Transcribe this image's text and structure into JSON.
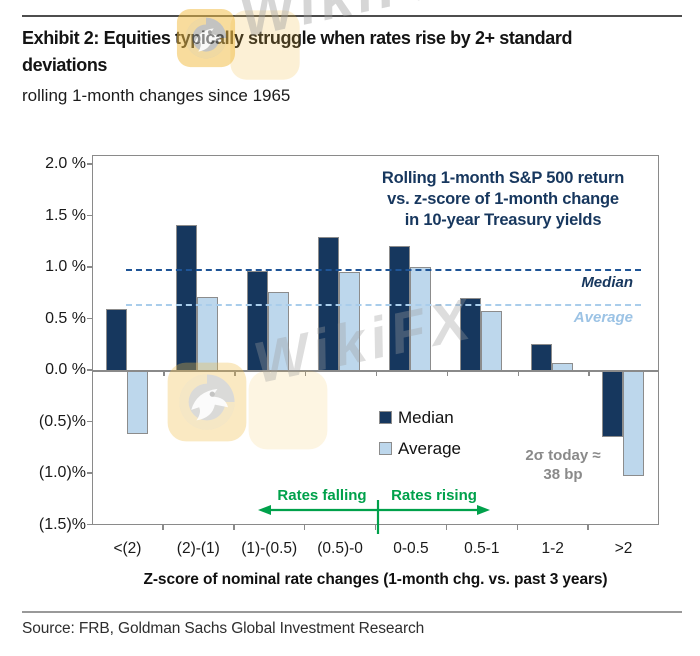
{
  "header": {
    "title_lines": [
      "Exhibit 2: Equities typically struggle when rates rise by 2+ standard",
      "deviations"
    ],
    "title": "Exhibit 2: Equities typically struggle when rates rise by 2+ standard deviations",
    "subtitle": "rolling 1-month changes since 1965"
  },
  "watermark": {
    "text": "WikiFX"
  },
  "chart_data": {
    "type": "bar",
    "inner_title_lines": [
      "Rolling 1-month S&P 500 return",
      "vs. z-score of 1-month change",
      "in 10-year Treasury yields"
    ],
    "categories": [
      "<(2)",
      "(2)-(1)",
      "(1)-(0.5)",
      "(0.5)-0",
      "0-0.5",
      "0.5-1",
      "1-2",
      ">2"
    ],
    "series": [
      {
        "name": "Median",
        "color": "#16375E",
        "values": [
          0.6,
          1.42,
          0.97,
          1.3,
          1.21,
          0.71,
          0.26,
          -0.64
        ]
      },
      {
        "name": "Average",
        "color": "#BDD7EC",
        "values": [
          -0.61,
          0.72,
          0.77,
          0.96,
          1.01,
          0.58,
          0.08,
          -1.02
        ]
      }
    ],
    "reference_lines": [
      {
        "name": "Median",
        "value": 0.98,
        "line_color": "#1F5597",
        "label_color": "#17375E"
      },
      {
        "name": "Average",
        "value": 0.64,
        "line_color": "#A9CDEB",
        "label_color": "#9CC3E5"
      }
    ],
    "y_axis": {
      "ticks": [
        {
          "label": "2.0 %",
          "value": 2.0
        },
        {
          "label": "1.5 %",
          "value": 1.5
        },
        {
          "label": "1.0 %",
          "value": 1.0
        },
        {
          "label": "0.5 %",
          "value": 0.5
        },
        {
          "label": "0.0 %",
          "value": 0.0
        },
        {
          "label": "(0.5)%",
          "value": -0.5
        },
        {
          "label": "(1.0)%",
          "value": -1.0
        },
        {
          "label": "(1.5)%",
          "value": -1.5
        }
      ],
      "ylim": [
        -1.5,
        2.09
      ]
    },
    "xlabel": "Z-score of nominal rate changes (1-month chg. vs. past 3 years)",
    "grid": false,
    "legend_position": "inside-bottom-center",
    "bar_border_color": "#8C8C8C",
    "annotations": {
      "rates_falling": "Rates falling",
      "rates_rising": "Rates rising",
      "arrow_color": "#00A14B",
      "sigma_note": [
        "2σ today ≈",
        "38 bp"
      ],
      "sigma_note_color": "#8A8A8A"
    }
  },
  "footer": {
    "source": "Source: FRB, Goldman Sachs Global Investment Research"
  }
}
